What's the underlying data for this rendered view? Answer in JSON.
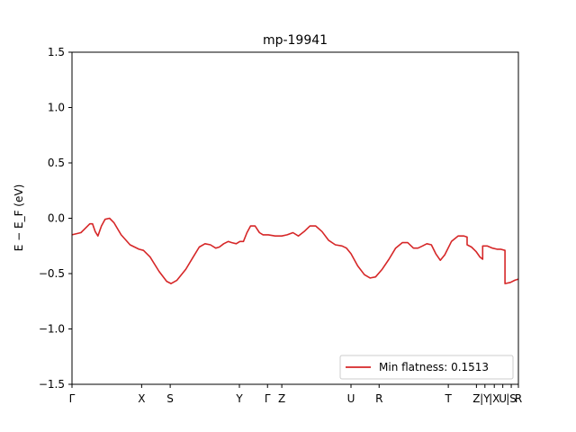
{
  "chart_data": {
    "type": "line",
    "title": "mp-19941",
    "ylabel": "E − E_F (eV)",
    "ylim": [
      -1.5,
      1.5
    ],
    "xlim": [
      0,
      1
    ],
    "y_ticks": [
      {
        "value": 1.5,
        "label": "1.5"
      },
      {
        "value": 1.0,
        "label": "1.0"
      },
      {
        "value": 0.5,
        "label": "0.5"
      },
      {
        "value": 0.0,
        "label": "0.0"
      },
      {
        "value": -0.5,
        "label": "−0.5"
      },
      {
        "value": -1.0,
        "label": "−1.0"
      },
      {
        "value": -1.5,
        "label": "−1.5"
      }
    ],
    "x_ticks": [
      {
        "pos": 0.0,
        "label": "Γ"
      },
      {
        "pos": 0.156,
        "label": "X"
      },
      {
        "pos": 0.22,
        "label": "S"
      },
      {
        "pos": 0.375,
        "label": "Y"
      },
      {
        "pos": 0.438,
        "label": "Γ"
      },
      {
        "pos": 0.47,
        "label": "Z"
      },
      {
        "pos": 0.625,
        "label": "U"
      },
      {
        "pos": 0.688,
        "label": "R"
      },
      {
        "pos": 0.843,
        "label": "T"
      },
      {
        "pos": 0.906,
        "label": "Z"
      },
      {
        "pos": 0.925,
        "label": "|Y"
      },
      {
        "pos": 0.946,
        "label": "|X"
      },
      {
        "pos": 0.965,
        "label": "U"
      },
      {
        "pos": 0.984,
        "label": "|S"
      },
      {
        "pos": 1.0,
        "label": "R"
      }
    ],
    "grid": false,
    "legend": {
      "position": "lower-right"
    },
    "series": [
      {
        "name": "Min flatness: 0.1513",
        "color": "#d62728",
        "segments": [
          [
            [
              0.0,
              -0.15
            ],
            [
              0.02,
              -0.13
            ],
            [
              0.03,
              -0.09
            ],
            [
              0.04,
              -0.05
            ],
            [
              0.046,
              -0.05
            ],
            [
              0.052,
              -0.12
            ],
            [
              0.058,
              -0.16
            ],
            [
              0.066,
              -0.07
            ],
            [
              0.074,
              -0.01
            ],
            [
              0.084,
              0.0
            ],
            [
              0.094,
              -0.04
            ],
            [
              0.11,
              -0.15
            ],
            [
              0.13,
              -0.24
            ],
            [
              0.15,
              -0.28
            ],
            [
              0.16,
              -0.29
            ],
            [
              0.175,
              -0.35
            ],
            [
              0.195,
              -0.48
            ],
            [
              0.212,
              -0.57
            ],
            [
              0.222,
              -0.59
            ],
            [
              0.235,
              -0.56
            ],
            [
              0.255,
              -0.46
            ],
            [
              0.27,
              -0.36
            ],
            [
              0.285,
              -0.26
            ],
            [
              0.298,
              -0.23
            ],
            [
              0.31,
              -0.24
            ],
            [
              0.322,
              -0.27
            ],
            [
              0.33,
              -0.26
            ],
            [
              0.34,
              -0.23
            ],
            [
              0.35,
              -0.21
            ],
            [
              0.358,
              -0.22
            ],
            [
              0.368,
              -0.23
            ],
            [
              0.376,
              -0.21
            ],
            [
              0.384,
              -0.21
            ],
            [
              0.392,
              -0.13
            ],
            [
              0.4,
              -0.07
            ],
            [
              0.41,
              -0.07
            ],
            [
              0.42,
              -0.13
            ],
            [
              0.428,
              -0.15
            ],
            [
              0.44,
              -0.15
            ],
            [
              0.455,
              -0.16
            ],
            [
              0.47,
              -0.16
            ],
            [
              0.482,
              -0.15
            ],
            [
              0.495,
              -0.13
            ],
            [
              0.507,
              -0.16
            ],
            [
              0.52,
              -0.12
            ],
            [
              0.533,
              -0.07
            ],
            [
              0.546,
              -0.07
            ],
            [
              0.56,
              -0.12
            ],
            [
              0.575,
              -0.2
            ],
            [
              0.59,
              -0.24
            ],
            [
              0.605,
              -0.25
            ],
            [
              0.615,
              -0.27
            ],
            [
              0.625,
              -0.32
            ],
            [
              0.64,
              -0.43
            ],
            [
              0.655,
              -0.51
            ],
            [
              0.668,
              -0.54
            ],
            [
              0.68,
              -0.53
            ],
            [
              0.695,
              -0.46
            ],
            [
              0.71,
              -0.37
            ],
            [
              0.725,
              -0.27
            ],
            [
              0.74,
              -0.22
            ],
            [
              0.752,
              -0.22
            ],
            [
              0.765,
              -0.27
            ],
            [
              0.775,
              -0.27
            ],
            [
              0.785,
              -0.25
            ],
            [
              0.795,
              -0.23
            ],
            [
              0.805,
              -0.24
            ],
            [
              0.815,
              -0.32
            ],
            [
              0.825,
              -0.38
            ],
            [
              0.835,
              -0.33
            ],
            [
              0.85,
              -0.21
            ],
            [
              0.865,
              -0.16
            ],
            [
              0.878,
              -0.16
            ],
            [
              0.885,
              -0.17
            ],
            [
              0.885,
              -0.24
            ],
            [
              0.895,
              -0.26
            ],
            [
              0.905,
              -0.3
            ],
            [
              0.914,
              -0.35
            ],
            [
              0.92,
              -0.37
            ],
            [
              0.92,
              -0.25
            ],
            [
              0.93,
              -0.25
            ],
            [
              0.942,
              -0.27
            ],
            [
              0.952,
              -0.28
            ],
            [
              0.96,
              -0.28
            ],
            [
              0.97,
              -0.29
            ],
            [
              0.97,
              -0.59
            ],
            [
              0.982,
              -0.58
            ],
            [
              0.992,
              -0.56
            ],
            [
              1.0,
              -0.55
            ]
          ]
        ]
      }
    ]
  }
}
